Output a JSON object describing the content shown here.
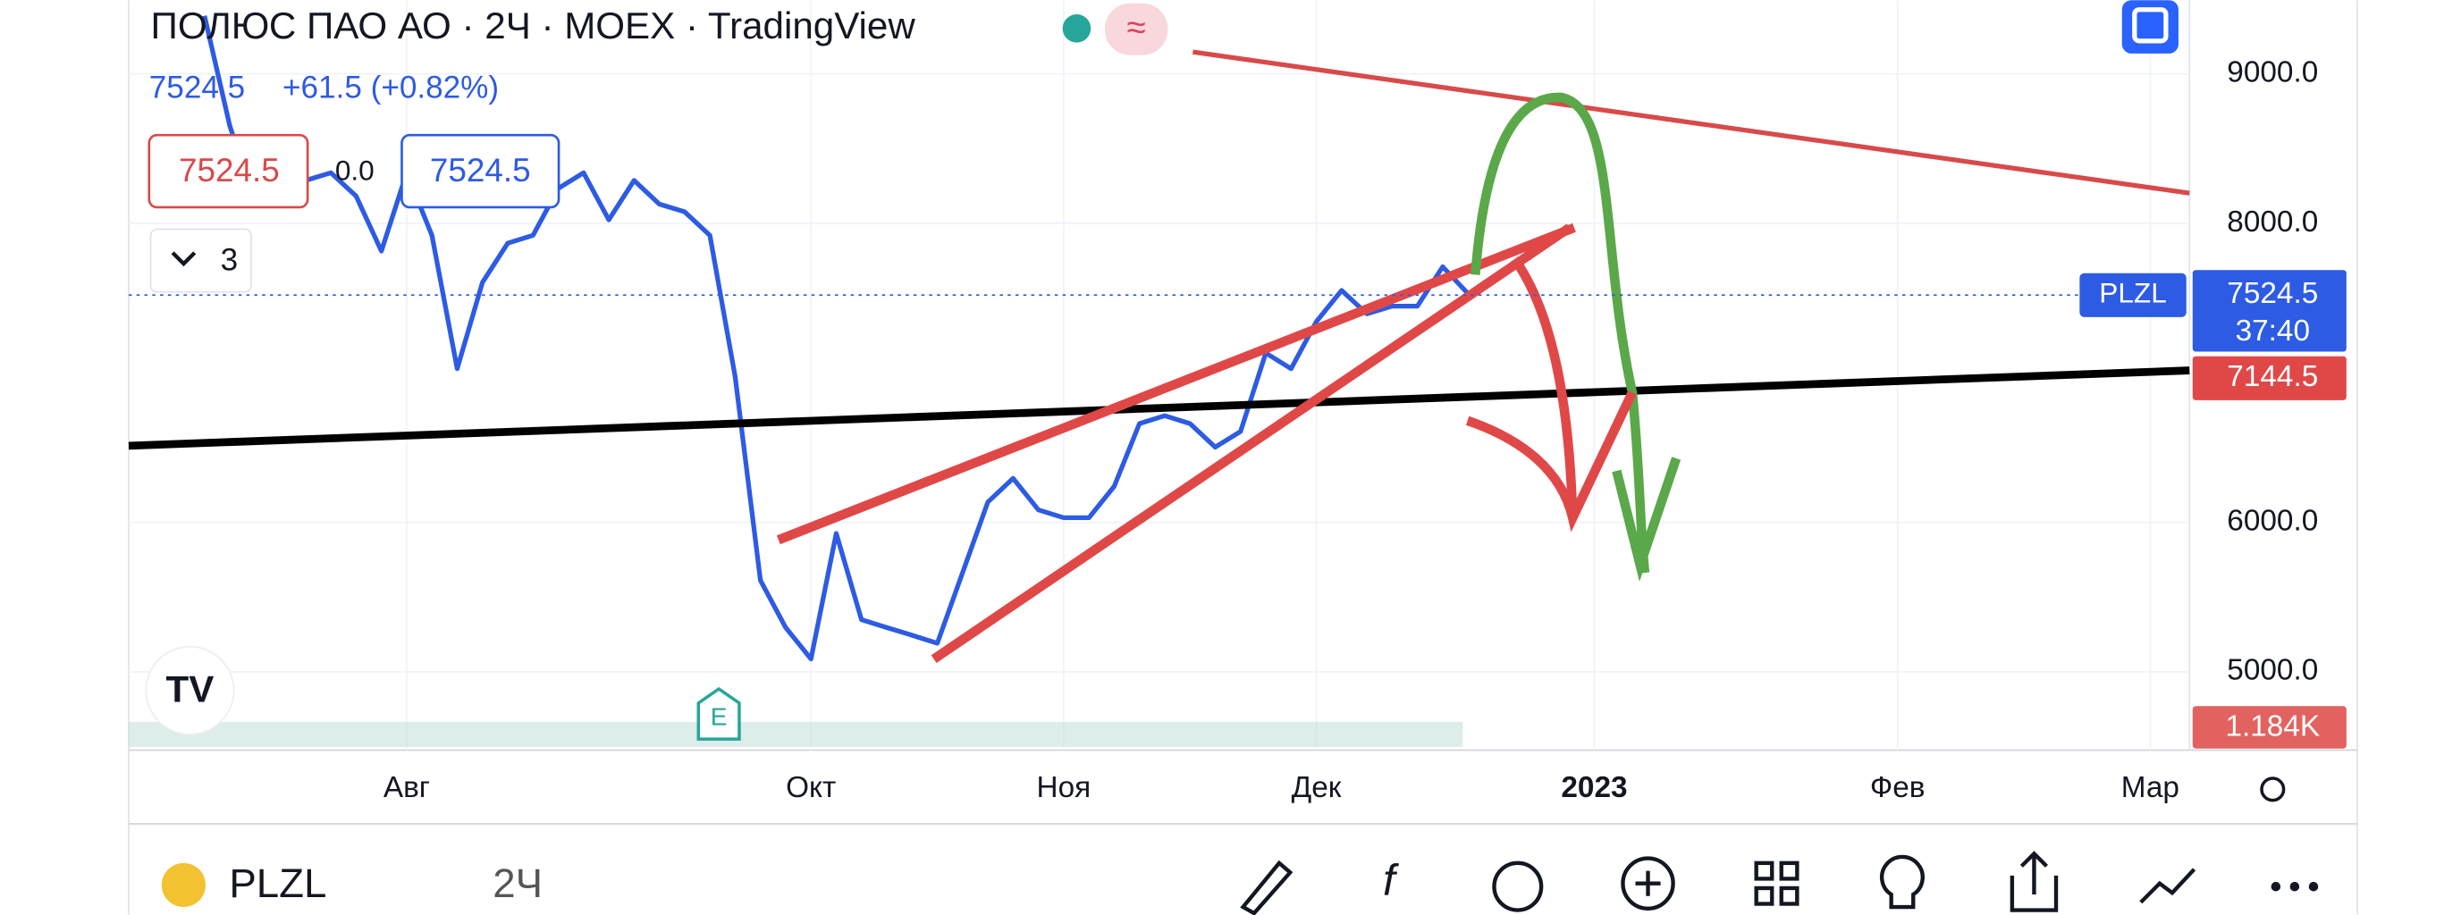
{
  "header": {
    "title": "ПОЛЮС ПАО АО · 2Ч · MOEX · TradingView",
    "price": "7524.5",
    "change": "+61.5 (+0.82%)",
    "sell": "7524.5",
    "spread": "0.0",
    "buy": "7524.5",
    "indicators": "3"
  },
  "chart_data": {
    "type": "line",
    "categories": [
      null,
      null,
      null,
      null,
      null,
      null,
      null,
      null,
      null,
      null,
      null,
      "Авг",
      null,
      null,
      null,
      null,
      null,
      null,
      null,
      null,
      null,
      null,
      null,
      null,
      null,
      null,
      null,
      "Окт",
      null,
      null,
      null,
      null,
      null,
      null,
      null,
      null,
      null,
      "Ноя",
      null,
      null,
      null,
      null,
      null,
      null,
      null,
      null,
      null,
      "Дек",
      null,
      null,
      null,
      null,
      null,
      null,
      null,
      null,
      null,
      null,
      "2023",
      null,
      null,
      null,
      null,
      null,
      null,
      null,
      null,
      null,
      null,
      null,
      "Фев",
      null,
      null,
      null,
      null,
      null,
      null,
      null,
      null,
      null,
      "Мар",
      null
    ],
    "series": [
      {
        "name": "PLZL",
        "color": "#2d5be3",
        "values": [
          null,
          null,
          null,
          9388,
          8654,
          8129,
          8234,
          8287,
          8339,
          8182,
          7815,
          8339,
          7920,
          7028,
          7605,
          7867,
          7920,
          8234,
          8339,
          8024,
          8287,
          8129,
          8077,
          7920,
          6975,
          5612,
          5297,
          5087,
          5926,
          5349,
          5297,
          5245,
          5192,
          5664,
          6136,
          6294,
          6084,
          6031,
          6031,
          6241,
          6661,
          6713,
          6661,
          6503,
          6608,
          7133,
          7028,
          7343,
          7552,
          7395,
          7447,
          7447,
          7710,
          7531,
          null,
          null,
          null,
          null,
          null,
          null,
          null,
          null,
          null,
          null,
          null,
          null,
          null,
          null,
          null,
          null,
          null,
          null,
          null,
          null,
          null,
          null,
          null,
          null,
          null,
          null,
          null,
          null
        ]
      }
    ],
    "ylim": [
      4477,
      9493
    ],
    "yticks": [
      {
        "value": 5000,
        "label": "5000.0"
      },
      {
        "value": 6000,
        "label": "6000.0"
      },
      {
        "value": 8000,
        "label": "8000.0"
      },
      {
        "value": 9000,
        "label": "9000.0"
      }
    ],
    "grid": true
  },
  "price_labels": {
    "symbol": "PLZL",
    "last": "7524.5",
    "countdown": "37:40",
    "ma": "7144.5",
    "volume": "1.184K"
  },
  "toolbar": {
    "symbol": "PLZL",
    "interval": "2Ч"
  },
  "icons": {
    "earnings": "E"
  }
}
